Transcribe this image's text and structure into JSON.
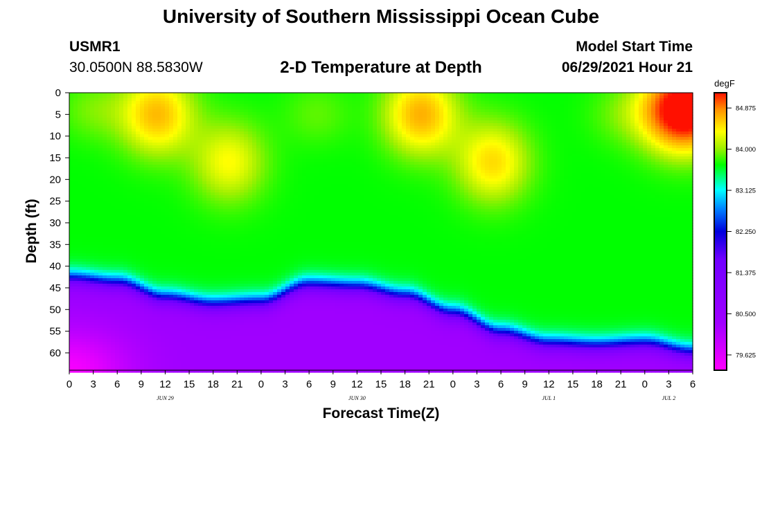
{
  "page": {
    "title_top": "University of Southern Mississippi Ocean Cube",
    "title_bottom": "University of Southern Mississippi Ocean Cube",
    "station_id": "USMR1",
    "station_coords": "30.0500N  88.5830W",
    "plot_title": "2-D Temperature at Depth",
    "model_start_label": "Model Start Time",
    "model_start_value": "06/29/2021 Hour 21"
  },
  "chart_data": {
    "type": "heatmap",
    "title": "2-D Temperature at Depth",
    "xlabel": "Forecast Time(Z)",
    "ylabel": "Depth (ft)",
    "colorbar_unit": "degF",
    "x_range_hours": [
      0,
      78
    ],
    "x_tick_labels": [
      "0",
      "3",
      "6",
      "9",
      "12",
      "15",
      "18",
      "21",
      "0",
      "3",
      "6",
      "9",
      "12",
      "15",
      "18",
      "21",
      "0",
      "3",
      "6",
      "9",
      "12",
      "15",
      "18",
      "21",
      "0",
      "3",
      "6"
    ],
    "date_labels": [
      {
        "hour": 12,
        "label": "JUN 29"
      },
      {
        "hour": 36,
        "label": "JUN 30"
      },
      {
        "hour": 60,
        "label": "JUL 1"
      },
      {
        "hour": 75,
        "label": "JUL 2"
      }
    ],
    "y_range_ft": [
      0,
      64
    ],
    "y_ticks": [
      0,
      5,
      10,
      15,
      20,
      25,
      30,
      35,
      40,
      45,
      50,
      55,
      60
    ],
    "y_tick_labels": [
      "0",
      "5",
      "10",
      "15",
      "20",
      "25",
      "30",
      "35",
      "40",
      "45",
      "50",
      "55",
      "60"
    ],
    "colorbar_ticks": [
      84.875,
      84.0,
      83.125,
      82.25,
      81.375,
      80.5,
      79.625
    ],
    "colorbar_tick_labels": [
      "84.875",
      "84.000",
      "83.125",
      "82.250",
      "81.375",
      "80.500",
      "79.625"
    ],
    "colorbar_range": [
      79.3,
      85.2
    ],
    "thermocline_depth_ft": {
      "hours": [
        0,
        6,
        12,
        18,
        24,
        30,
        36,
        42,
        48,
        54,
        60,
        66,
        72,
        78
      ],
      "values": [
        43,
        44,
        47.5,
        49,
        48.5,
        44.5,
        45,
        47,
        51,
        55.5,
        58,
        58.5,
        58,
        60
      ]
    },
    "near_surface_warm_cores": [
      {
        "hour": 11,
        "depth_ft": 5,
        "temp": 84.6
      },
      {
        "hour": 20,
        "depth_ft": 16,
        "temp": 84.3
      },
      {
        "hour": 44,
        "depth_ft": 5,
        "temp": 84.65
      },
      {
        "hour": 53,
        "depth_ft": 16,
        "temp": 84.45
      },
      {
        "hour": 78,
        "depth_ft": 4,
        "temp": 85.0
      },
      {
        "hour": 75,
        "depth_ft": 4,
        "temp": 84.5
      }
    ],
    "near_surface_cool_cores": [
      {
        "hour": 3,
        "depth_ft": 4,
        "temp": 83.9
      },
      {
        "hour": 31,
        "depth_ft": 5,
        "temp": 83.85
      },
      {
        "hour": 69,
        "depth_ft": 5,
        "temp": 83.85
      }
    ],
    "mixed_layer_temp": 83.65,
    "bottom_temp": 80.3,
    "bottom_left_min_temp": 79.4
  }
}
